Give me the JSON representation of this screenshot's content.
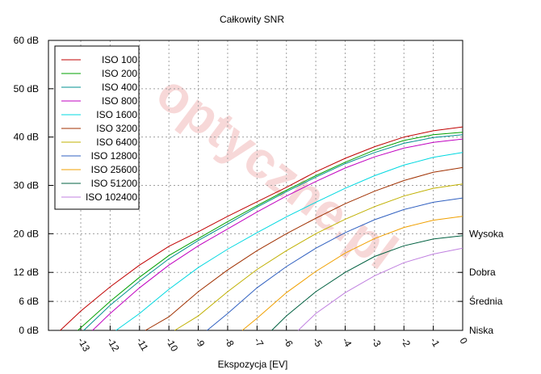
{
  "chart_data": {
    "type": "line",
    "title": "Całkowity SNR",
    "x_label": "Ekspozycja [EV]",
    "watermark": "optyczne.pl",
    "xlim": [
      -14.1,
      0
    ],
    "xticks": [
      -13,
      -12,
      -11,
      -10,
      -9,
      -8,
      -7,
      -6,
      -5,
      -4,
      -3,
      -2,
      -1,
      0
    ],
    "ylim": [
      0,
      60
    ],
    "yticks": [
      {
        "value": 0,
        "label": "0 dB"
      },
      {
        "value": 6,
        "label": "6 dB"
      },
      {
        "value": 12,
        "label": "12 dB"
      },
      {
        "value": 20,
        "label": "20 dB"
      },
      {
        "value": 30,
        "label": "30 dB"
      },
      {
        "value": 40,
        "label": "40 dB"
      },
      {
        "value": 50,
        "label": "50 dB"
      },
      {
        "value": 60,
        "label": "60 dB"
      }
    ],
    "right_labels": [
      {
        "value": 20,
        "label": "Wysoka"
      },
      {
        "value": 12,
        "label": "Dobra"
      },
      {
        "value": 6,
        "label": "Średnia"
      },
      {
        "value": 0,
        "label": "Niska"
      }
    ],
    "grid": true,
    "legend": "upper left",
    "series": [
      {
        "name": "ISO 100",
        "color": "#c00000",
        "x": [
          -13.7,
          -13,
          -12,
          -11,
          -10,
          -9,
          -8,
          -7,
          -6,
          -5,
          -4,
          -3,
          -2,
          -1,
          0
        ],
        "values": [
          0,
          4,
          9,
          13.5,
          17.4,
          20.4,
          23.6,
          26.6,
          29.6,
          32.8,
          35.6,
          38,
          40,
          41.3,
          42.1
        ]
      },
      {
        "name": "ISO 200",
        "color": "#00a000",
        "x": [
          -13.1,
          -12,
          -11,
          -10,
          -9,
          -8,
          -7,
          -6,
          -5,
          -4,
          -3,
          -2,
          -1,
          0
        ],
        "values": [
          0,
          6,
          11,
          15.5,
          19,
          22.5,
          25.8,
          29,
          32,
          34.8,
          37.3,
          39.3,
          40.5,
          41
        ]
      },
      {
        "name": "ISO 400",
        "color": "#009090",
        "x": [
          -12.9,
          -12,
          -11,
          -10,
          -9,
          -8,
          -7,
          -6,
          -5,
          -4,
          -3,
          -2,
          -1,
          0
        ],
        "values": [
          0,
          5.2,
          10.2,
          14.8,
          18.6,
          22,
          25.5,
          28.7,
          31.7,
          34.5,
          36.8,
          38.7,
          39.9,
          40.5
        ]
      },
      {
        "name": "ISO 800",
        "color": "#c000c0",
        "x": [
          -12.6,
          -12,
          -11,
          -10,
          -9,
          -8,
          -7,
          -6,
          -5,
          -4,
          -3,
          -2,
          -1,
          0
        ],
        "values": [
          0,
          3.5,
          8.8,
          13.5,
          17.5,
          21,
          24.5,
          27.8,
          30.8,
          33.6,
          35.9,
          37.7,
          38.9,
          39.6
        ]
      },
      {
        "name": "ISO 1600",
        "color": "#00d8e0",
        "x": [
          -11.8,
          -11,
          -10,
          -9,
          -8,
          -7,
          -6,
          -5,
          -4,
          -3,
          -2,
          -1,
          0
        ],
        "values": [
          0,
          3.5,
          8.5,
          13,
          16.8,
          20.2,
          23.5,
          26.5,
          29.4,
          32,
          34.2,
          35.8,
          36.8
        ]
      },
      {
        "name": "ISO 3200",
        "color": "#a03000",
        "x": [
          -10.8,
          -10,
          -9,
          -8,
          -7,
          -6,
          -5,
          -4,
          -3,
          -2,
          -1,
          0
        ],
        "values": [
          0,
          2.8,
          8,
          12.5,
          16.5,
          20,
          23.2,
          26.2,
          28.8,
          31,
          32.7,
          33.7
        ]
      },
      {
        "name": "ISO 6400",
        "color": "#c0b000",
        "x": [
          -9.8,
          -9,
          -8,
          -7,
          -6,
          -5,
          -4,
          -3,
          -2,
          -1,
          0
        ],
        "values": [
          0,
          3,
          8,
          12.6,
          16.5,
          20,
          23,
          25.6,
          27.8,
          29.4,
          30.3
        ]
      },
      {
        "name": "ISO 12800",
        "color": "#3060c0",
        "x": [
          -8.7,
          -8,
          -7,
          -6,
          -5,
          -4,
          -3,
          -2,
          -1,
          0
        ],
        "values": [
          0,
          3.5,
          8.8,
          13.2,
          17,
          20.2,
          22.9,
          25,
          26.5,
          27.4
        ]
      },
      {
        "name": "ISO 25600",
        "color": "#f0a000",
        "x": [
          -7.5,
          -7,
          -6,
          -5,
          -4,
          -3,
          -2,
          -1,
          0
        ],
        "values": [
          0,
          2.5,
          7.8,
          12.2,
          16,
          19,
          21.3,
          22.8,
          23.6
        ]
      },
      {
        "name": "ISO 51200",
        "color": "#006040",
        "x": [
          -6.5,
          -6,
          -5,
          -4,
          -3,
          -2,
          -1,
          0
        ],
        "values": [
          0,
          3,
          8,
          12,
          15.3,
          17.5,
          18.9,
          19.6
        ]
      },
      {
        "name": "ISO 102400",
        "color": "#c080e0",
        "x": [
          -5.6,
          -5,
          -4,
          -3,
          -2,
          -1,
          0
        ],
        "values": [
          0,
          3.5,
          7.8,
          11.3,
          14,
          15.8,
          17
        ]
      }
    ]
  }
}
